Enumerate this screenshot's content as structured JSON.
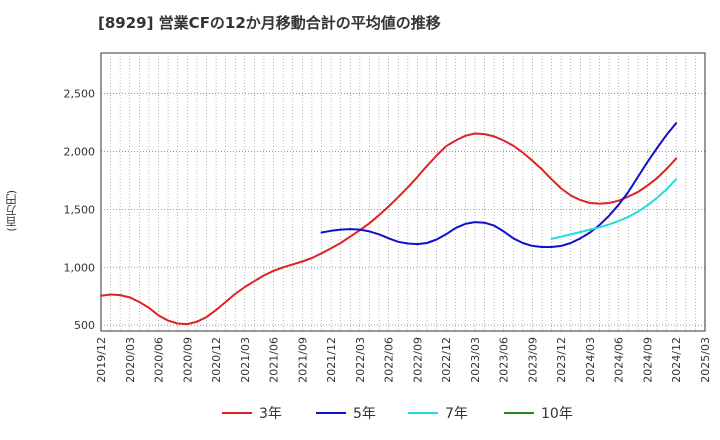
{
  "chart_data": {
    "type": "line",
    "title": "[8929]  営業CFの12か月移動合計の平均値の推移",
    "ylabel": "(百万円)",
    "xlabel": "",
    "x_ticks": [
      "2019/12",
      "2020/03",
      "2020/06",
      "2020/09",
      "2020/12",
      "2021/03",
      "2021/06",
      "2021/09",
      "2021/12",
      "2022/03",
      "2022/06",
      "2022/09",
      "2022/12",
      "2023/03",
      "2023/06",
      "2023/09",
      "2023/12",
      "2024/03",
      "2024/06",
      "2024/09",
      "2024/12",
      "2025/03"
    ],
    "y_ticks": [
      500,
      1000,
      1500,
      2000,
      2500
    ],
    "y_tick_labels": [
      "500",
      "1,000",
      "1,500",
      "2,000",
      "2,500"
    ],
    "ylim": [
      450,
      2850
    ],
    "x_range": [
      "2019/12",
      "2025/03"
    ],
    "grid": true,
    "legend_position": "bottom",
    "series": [
      {
        "name": "3年",
        "color": "#dd2222",
        "x": [
          "2019/12",
          "2020/01",
          "2020/02",
          "2020/03",
          "2020/04",
          "2020/05",
          "2020/06",
          "2020/07",
          "2020/08",
          "2020/09",
          "2020/10",
          "2020/11",
          "2020/12",
          "2021/01",
          "2021/02",
          "2021/03",
          "2021/04",
          "2021/05",
          "2021/06",
          "2021/07",
          "2021/08",
          "2021/09",
          "2021/10",
          "2021/11",
          "2021/12",
          "2022/01",
          "2022/02",
          "2022/03",
          "2022/04",
          "2022/05",
          "2022/06",
          "2022/07",
          "2022/08",
          "2022/09",
          "2022/10",
          "2022/11",
          "2022/12",
          "2023/01",
          "2023/02",
          "2023/03",
          "2023/04",
          "2023/05",
          "2023/06",
          "2023/07",
          "2023/08",
          "2023/09",
          "2023/10",
          "2023/11",
          "2023/12",
          "2024/01",
          "2024/02",
          "2024/03",
          "2024/04",
          "2024/05",
          "2024/06",
          "2024/07",
          "2024/08",
          "2024/09",
          "2024/10",
          "2024/11",
          "2024/12"
        ],
        "values": [
          755,
          765,
          760,
          740,
          700,
          650,
          585,
          540,
          515,
          510,
          530,
          570,
          630,
          700,
          770,
          830,
          880,
          930,
          970,
          1000,
          1025,
          1050,
          1080,
          1120,
          1165,
          1210,
          1265,
          1320,
          1380,
          1450,
          1525,
          1605,
          1690,
          1780,
          1875,
          1965,
          2045,
          2095,
          2135,
          2155,
          2150,
          2130,
          2095,
          2050,
          1990,
          1920,
          1845,
          1760,
          1680,
          1620,
          1580,
          1555,
          1550,
          1555,
          1575,
          1610,
          1650,
          1705,
          1770,
          1850,
          1940
        ]
      },
      {
        "name": "5年",
        "color": "#1111cc",
        "x": [
          "2021/11",
          "2021/12",
          "2022/01",
          "2022/02",
          "2022/03",
          "2022/04",
          "2022/05",
          "2022/06",
          "2022/07",
          "2022/08",
          "2022/09",
          "2022/10",
          "2022/11",
          "2022/12",
          "2023/01",
          "2023/02",
          "2023/03",
          "2023/04",
          "2023/05",
          "2023/06",
          "2023/07",
          "2023/08",
          "2023/09",
          "2023/10",
          "2023/11",
          "2023/12",
          "2024/01",
          "2024/02",
          "2024/03",
          "2024/04",
          "2024/05",
          "2024/06",
          "2024/07",
          "2024/08",
          "2024/09",
          "2024/10",
          "2024/11",
          "2024/12"
        ],
        "values": [
          1300,
          1315,
          1325,
          1330,
          1325,
          1310,
          1285,
          1250,
          1220,
          1205,
          1200,
          1210,
          1240,
          1285,
          1340,
          1375,
          1390,
          1385,
          1360,
          1310,
          1250,
          1210,
          1185,
          1175,
          1175,
          1185,
          1210,
          1250,
          1300,
          1365,
          1445,
          1540,
          1650,
          1780,
          1910,
          2030,
          2145,
          2245
        ]
      },
      {
        "name": "7年",
        "color": "#22dddd",
        "x": [
          "2023/11",
          "2023/12",
          "2024/01",
          "2024/02",
          "2024/03",
          "2024/04",
          "2024/05",
          "2024/06",
          "2024/07",
          "2024/08",
          "2024/09",
          "2024/10",
          "2024/11",
          "2024/12"
        ],
        "values": [
          1245,
          1265,
          1285,
          1305,
          1325,
          1345,
          1370,
          1400,
          1435,
          1480,
          1535,
          1600,
          1675,
          1760
        ]
      },
      {
        "name": "10年",
        "color": "#228822",
        "x": [],
        "values": []
      }
    ]
  }
}
